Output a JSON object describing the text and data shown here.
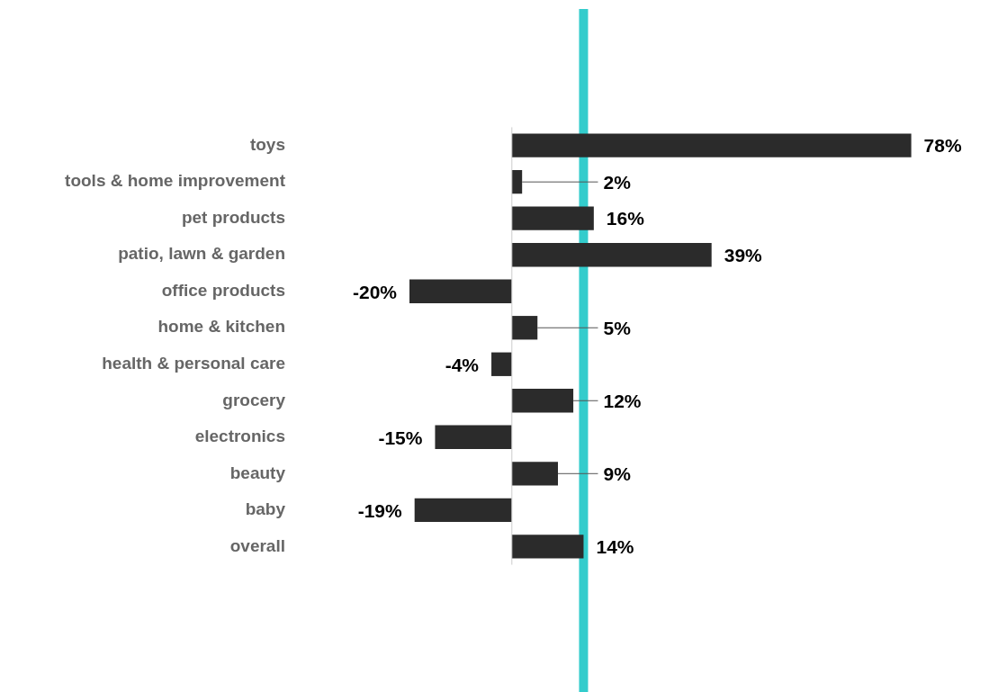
{
  "chart_data": {
    "type": "bar",
    "orientation": "horizontal",
    "categories": [
      "toys",
      "tools & home improvement",
      "pet products",
      "patio, lawn & garden",
      "office products",
      "home & kitchen",
      "health & personal care",
      "grocery",
      "electronics",
      "beauty",
      "baby",
      "overall"
    ],
    "values": [
      78,
      2,
      16,
      39,
      -20,
      5,
      -4,
      12,
      -15,
      9,
      -19,
      14
    ],
    "value_labels": [
      "78%",
      "2%",
      "16%",
      "39%",
      "-20%",
      "5%",
      "-4%",
      "12%",
      "-15%",
      "9%",
      "-19%",
      "14%"
    ],
    "color": "#2b2b2b",
    "tick_labels": "y",
    "legend": false,
    "ref_lines": [
      {
        "axis": "x",
        "value": 14,
        "color": "#33cccc"
      }
    ]
  }
}
